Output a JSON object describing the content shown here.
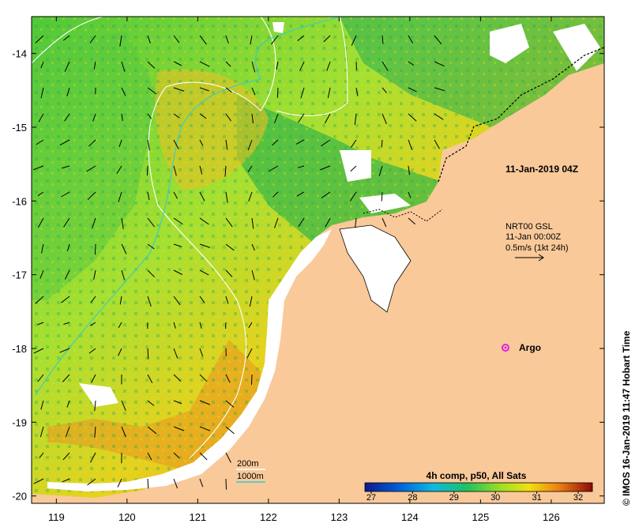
{
  "map": {
    "x_ticks": [
      "119",
      "120",
      "121",
      "122",
      "123",
      "124",
      "125",
      "126"
    ],
    "y_ticks": [
      "-14",
      "-15",
      "-16",
      "-17",
      "-18",
      "-19",
      "-20"
    ],
    "x_range": [
      118.65,
      126.75
    ],
    "y_range": [
      -20.1,
      -13.5
    ]
  },
  "annotations": {
    "timestamp": "11-Jan-2019 04Z",
    "current_title": "NRT00 GSL",
    "current_time": "11-Jan 00:00Z",
    "current_scale": "0.5m/s (1kt 24h)",
    "argo_label": "Argo",
    "contour_200": "200m",
    "contour_1000": "1000m"
  },
  "colorbar": {
    "title": "4h comp, p50, All Sats",
    "ticks": [
      "27",
      "28",
      "29",
      "30",
      "31",
      "32"
    ]
  },
  "credit": "© IMOS 16-Jan-2019 11:47 Hobart Time",
  "colors": {
    "land": "#f9c99a",
    "no_data": "#ffffff",
    "contour_200": "#ffffff",
    "contour_1000": "#33cccc",
    "argo": "#e020e0"
  }
}
